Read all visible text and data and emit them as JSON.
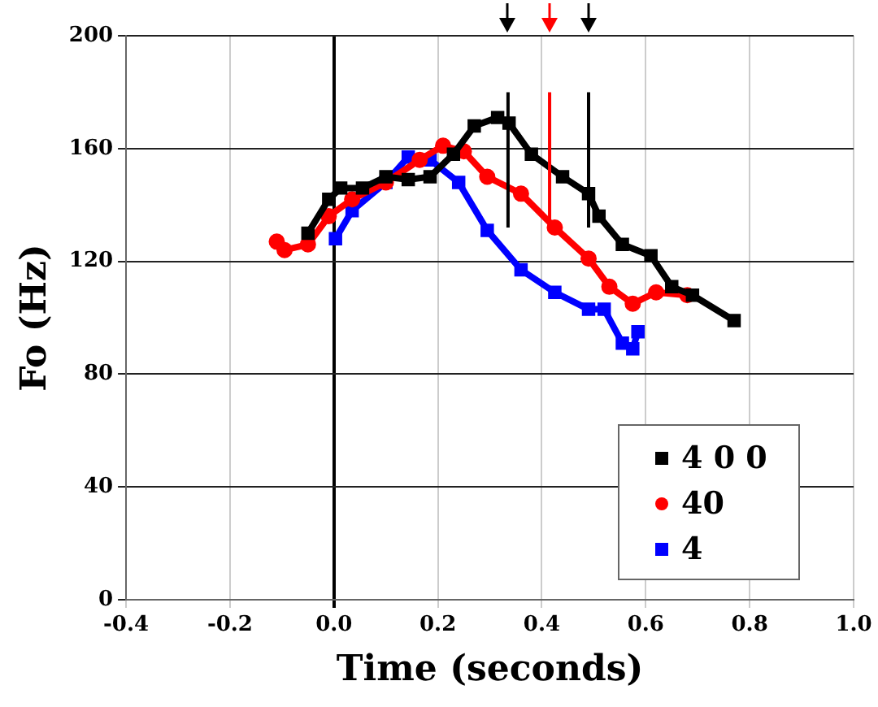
{
  "chart_data": {
    "type": "line",
    "xlabel": "Time (seconds)",
    "ylabel": "Fo (Hz)",
    "xlim": [
      -0.4,
      1.0
    ],
    "xticks": [
      -0.4,
      -0.2,
      {
        "value": 0,
        "label": "0.0"
      },
      0.2,
      0.4,
      0.6,
      0.8,
      {
        "value": 1,
        "label": "1.0"
      }
    ],
    "ylim": [
      0,
      200
    ],
    "yticks": [
      0,
      40,
      80,
      120,
      160,
      200
    ],
    "grid": true,
    "legend": "bottom right",
    "marker": "square",
    "ref_lines": [
      {
        "axis": "x",
        "value": 0.335,
        "color": "#000000"
      },
      {
        "axis": "x",
        "value": 0.415,
        "color": "#ff0000"
      },
      {
        "axis": "x",
        "value": 0.49,
        "color": "#000000"
      }
    ],
    "series": [
      {
        "name": "4 0 0",
        "color": "#000000",
        "x": [
          -0.05,
          -0.01,
          0.013,
          0.055,
          0.1,
          0.143,
          0.185,
          0.23,
          0.27,
          0.315,
          0.337,
          0.38,
          0.44,
          0.49,
          0.51,
          0.555,
          0.61,
          0.65,
          0.69,
          0.77
        ],
        "values": [
          130,
          142,
          146,
          146,
          150,
          149,
          150,
          158,
          168,
          171,
          169,
          158,
          150,
          144,
          136,
          126,
          122,
          111,
          108,
          99
        ]
      },
      {
        "name": "40",
        "color": "#ff0000",
        "marker": "circle",
        "x": [
          -0.11,
          -0.095,
          -0.05,
          -0.01,
          0.035,
          0.1,
          0.165,
          0.21,
          0.25,
          0.295,
          0.36,
          0.425,
          0.49,
          0.53,
          0.575,
          0.62,
          0.68
        ],
        "values": [
          127,
          124,
          126,
          136,
          142,
          148,
          156,
          161,
          159,
          150,
          144,
          132,
          121,
          111,
          105,
          109,
          108
        ]
      },
      {
        "name": "4",
        "color": "#0000ff",
        "x": [
          0.003,
          0.035,
          0.1,
          0.143,
          0.185,
          0.24,
          0.295,
          0.36,
          0.425,
          0.49,
          0.52,
          0.555,
          0.575,
          0.585
        ],
        "values": [
          128,
          138,
          148,
          157,
          156,
          148,
          131,
          117,
          109,
          103,
          103,
          91,
          89,
          95
        ]
      }
    ]
  }
}
